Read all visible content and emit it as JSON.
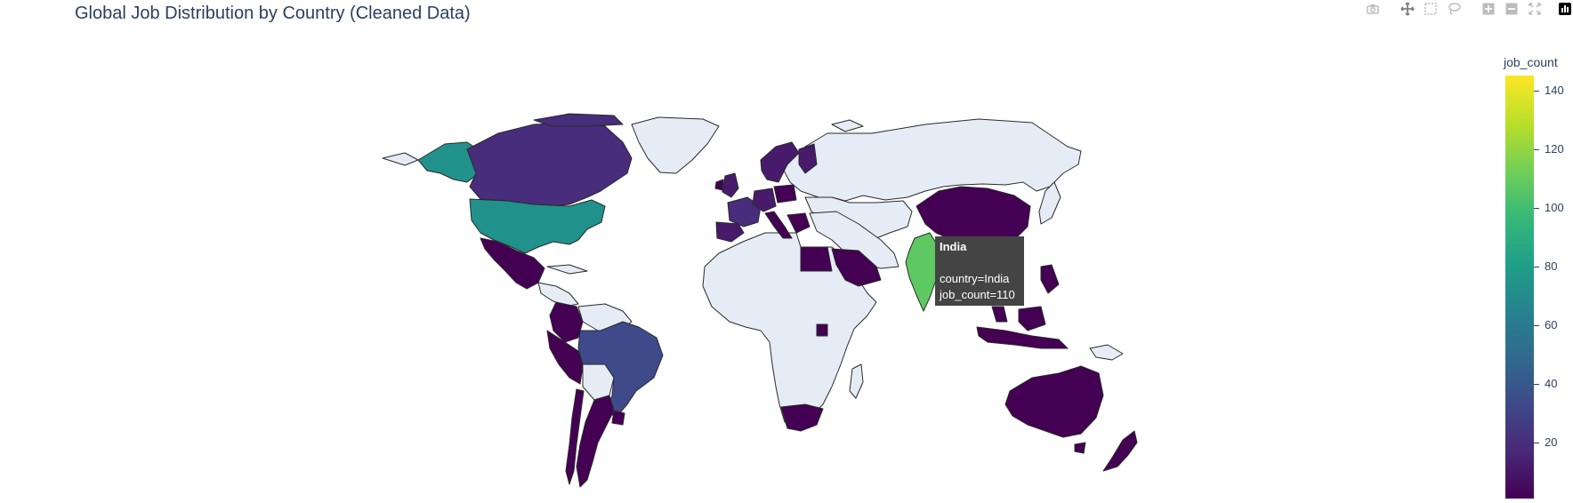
{
  "title": "Global Job Distribution by Country (Cleaned Data)",
  "modebar": {
    "buttons": [
      "camera-icon",
      "pan-icon",
      "box-select-icon",
      "lasso-icon",
      "zoom-in-icon",
      "zoom-out-icon",
      "reset-axes-icon",
      "plotly-logo-icon"
    ]
  },
  "colorbar": {
    "title": "job_count",
    "ticks": [
      "140",
      "120",
      "100",
      "80",
      "60",
      "40",
      "20"
    ],
    "range": [
      1,
      145
    ],
    "colorscale": "Viridis"
  },
  "tooltip": {
    "title": "India",
    "line1": "country=India",
    "line2": "job_count=110"
  },
  "colors": {
    "no_data": "#e5ecf6",
    "border": "#2a2a2a",
    "title": "#2a3f5f",
    "tooltip_bg": "#444444"
  },
  "chart_data": {
    "type": "choropleth",
    "title": "Global Job Distribution by Country (Cleaned Data)",
    "color_variable": "job_count",
    "colorscale": "Viridis",
    "zmin": 1,
    "zmax": 145,
    "hover": {
      "country": "India",
      "job_count": 110
    },
    "values": [
      {
        "country": "United States",
        "job_count": 75
      },
      {
        "country": "India",
        "job_count": 110
      },
      {
        "country": "Brazil",
        "job_count": 27
      },
      {
        "country": "Canada",
        "job_count": 14
      },
      {
        "country": "United Kingdom",
        "job_count": 12
      },
      {
        "country": "Germany",
        "job_count": 12
      },
      {
        "country": "France",
        "job_count": 14
      },
      {
        "country": "Spain",
        "job_count": 7
      },
      {
        "country": "Italy",
        "job_count": 6
      },
      {
        "country": "Sweden",
        "job_count": 6
      },
      {
        "country": "Norway",
        "job_count": 5
      },
      {
        "country": "Finland",
        "job_count": 5
      },
      {
        "country": "Poland",
        "job_count": 4
      },
      {
        "country": "Mexico",
        "job_count": 5
      },
      {
        "country": "Colombia",
        "job_count": 3
      },
      {
        "country": "Peru",
        "job_count": 3
      },
      {
        "country": "Argentina",
        "job_count": 3
      },
      {
        "country": "Chile",
        "job_count": 2
      },
      {
        "country": "Uruguay",
        "job_count": 2
      },
      {
        "country": "Egypt",
        "job_count": 2
      },
      {
        "country": "Saudi Arabia",
        "job_count": 3
      },
      {
        "country": "South Africa",
        "job_count": 3
      },
      {
        "country": "China",
        "job_count": 2
      },
      {
        "country": "Malaysia",
        "job_count": 3
      },
      {
        "country": "Philippines",
        "job_count": 3
      },
      {
        "country": "Indonesia",
        "job_count": 2
      },
      {
        "country": "Australia",
        "job_count": 5
      },
      {
        "country": "New Zealand",
        "job_count": 2
      }
    ]
  }
}
